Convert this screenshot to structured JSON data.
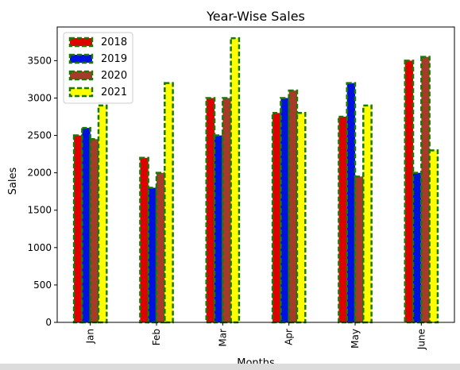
{
  "chart_data": {
    "type": "bar",
    "title": "Year-Wise Sales",
    "xlabel": "Months",
    "ylabel": "Sales",
    "categories": [
      "Jan",
      "Feb",
      "Mar",
      "Apr",
      "May",
      "June"
    ],
    "ylim": [
      0,
      3950
    ],
    "yticks": [
      0,
      500,
      1000,
      1500,
      2000,
      2500,
      3000,
      3500
    ],
    "grid": false,
    "legend_position": "top-left",
    "edge_color": "#1a7a00",
    "edge_style": "dashed",
    "series": [
      {
        "name": "2018",
        "color": "#e00000",
        "values": [
          2500,
          2200,
          3000,
          2800,
          2750,
          3500
        ]
      },
      {
        "name": "2019",
        "color": "#0010e0",
        "values": [
          2600,
          1800,
          2500,
          3000,
          3200,
          2000
        ]
      },
      {
        "name": "2020",
        "color": "#a83a2a",
        "values": [
          2450,
          2000,
          3000,
          3100,
          1950,
          3550
        ]
      },
      {
        "name": "2021",
        "color": "#ffff00",
        "values": [
          2900,
          3200,
          3800,
          2800,
          2900,
          2300
        ]
      }
    ]
  }
}
